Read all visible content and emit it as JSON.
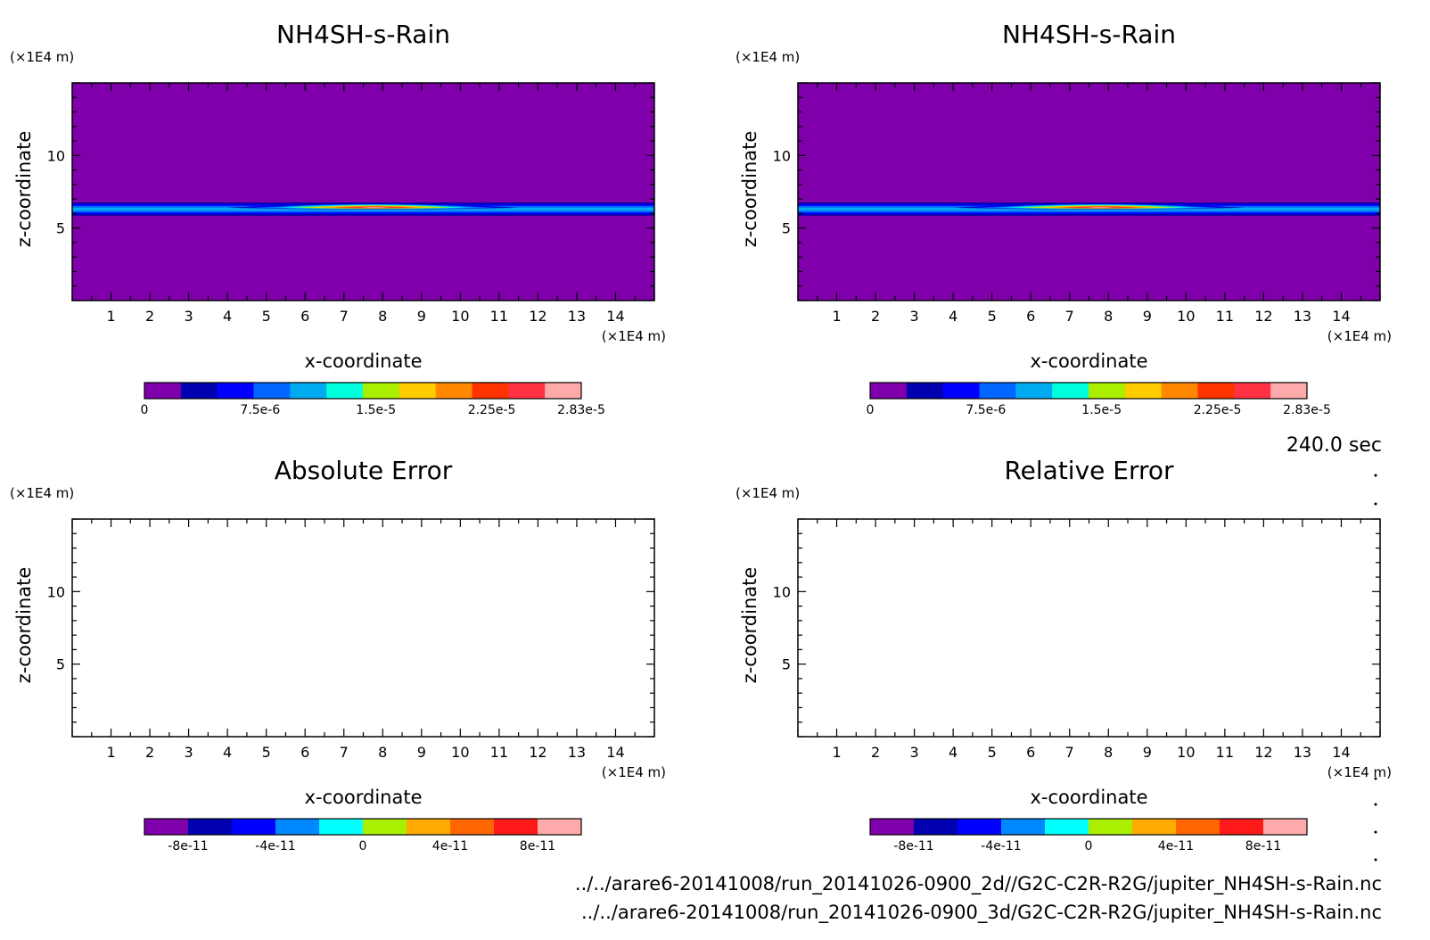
{
  "time_label": "240.0 sec",
  "file_paths": [
    "../../arare6-20141008/run_20141026-0900_2d//G2C-C2R-R2G/jupiter_NH4SH-s-Rain.nc",
    "../../arare6-20141008/run_20141026-0900_3d/G2C-C2R-R2G/jupiter_NH4SH-s-Rain.nc"
  ],
  "chart_data": [
    {
      "type": "heatmap",
      "title": "NH4SH-s-Rain",
      "xlabel": "x-coordinate",
      "ylabel": "z-coordinate",
      "x_unit": "(×1E4 m)",
      "y_unit": "(×1E4 m)",
      "xlim": [
        0,
        15
      ],
      "ylim": [
        0,
        15
      ],
      "x_ticks": [
        1,
        2,
        3,
        4,
        5,
        6,
        7,
        8,
        9,
        10,
        11,
        12,
        13,
        14
      ],
      "y_ticks": [
        5,
        10
      ],
      "background_value": 0,
      "features": [
        {
          "shape": "layer",
          "z_center": 6.3,
          "z_half_width": 0.45,
          "x_range": [
            0,
            15
          ],
          "peak": 1e-05
        },
        {
          "shape": "bump",
          "x_range": [
            4,
            11.5
          ],
          "x_peak": 7.8,
          "z_center": 6.4,
          "z_half_width": 0.3,
          "peak": 2.83e-05
        }
      ],
      "colorbar": {
        "min": 0,
        "max": 2.83e-05,
        "tick_labels": [
          "0",
          "7.5e-6",
          "1.5e-5",
          "2.25e-5",
          "2.83e-5"
        ],
        "tick_values": [
          0,
          7.5e-06,
          1.5e-05,
          2.25e-05,
          2.83e-05
        ],
        "colors": [
          "#7f00aa",
          "#0000b0",
          "#0000ff",
          "#0066ff",
          "#00aaee",
          "#00ffdd",
          "#aaee00",
          "#ffcc00",
          "#ff8800",
          "#ff3300",
          "#ff3344",
          "#ffaaaa"
        ]
      }
    },
    {
      "type": "heatmap",
      "title": "NH4SH-s-Rain",
      "xlabel": "x-coordinate",
      "ylabel": "z-coordinate",
      "x_unit": "(×1E4 m)",
      "y_unit": "(×1E4 m)",
      "xlim": [
        0,
        15
      ],
      "ylim": [
        0,
        15
      ],
      "x_ticks": [
        1,
        2,
        3,
        4,
        5,
        6,
        7,
        8,
        9,
        10,
        11,
        12,
        13,
        14
      ],
      "y_ticks": [
        5,
        10
      ],
      "background_value": 0,
      "features": [
        {
          "shape": "layer",
          "z_center": 6.3,
          "z_half_width": 0.45,
          "x_range": [
            0,
            15
          ],
          "peak": 1e-05
        },
        {
          "shape": "bump",
          "x_range": [
            4,
            11.5
          ],
          "x_peak": 7.8,
          "z_center": 6.4,
          "z_half_width": 0.3,
          "peak": 2.83e-05
        }
      ],
      "colorbar": {
        "min": 0,
        "max": 2.83e-05,
        "tick_labels": [
          "0",
          "7.5e-6",
          "1.5e-5",
          "2.25e-5",
          "2.83e-5"
        ],
        "tick_values": [
          0,
          7.5e-06,
          1.5e-05,
          2.25e-05,
          2.83e-05
        ],
        "colors": [
          "#7f00aa",
          "#0000b0",
          "#0000ff",
          "#0066ff",
          "#00aaee",
          "#00ffdd",
          "#aaee00",
          "#ffcc00",
          "#ff8800",
          "#ff3300",
          "#ff3344",
          "#ffaaaa"
        ]
      }
    },
    {
      "type": "heatmap",
      "title": "Absolute Error",
      "xlabel": "x-coordinate",
      "ylabel": "z-coordinate",
      "x_unit": "(×1E4 m)",
      "y_unit": "(×1E4 m)",
      "xlim": [
        0,
        15
      ],
      "ylim": [
        0,
        15
      ],
      "x_ticks": [
        1,
        2,
        3,
        4,
        5,
        6,
        7,
        8,
        9,
        10,
        11,
        12,
        13,
        14
      ],
      "y_ticks": [
        5,
        10
      ],
      "background_value": null,
      "features": [],
      "colorbar": {
        "min": -1e-10,
        "max": 1e-10,
        "tick_labels": [
          "-8e-11",
          "-4e-11",
          "0",
          "4e-11",
          "8e-11"
        ],
        "tick_values": [
          -8e-11,
          -4e-11,
          0,
          4e-11,
          8e-11
        ],
        "colors": [
          "#7f00aa",
          "#0000b0",
          "#0000ff",
          "#0088ff",
          "#00ffff",
          "#aaee00",
          "#ffaa00",
          "#ff6600",
          "#ff1a1a",
          "#ffaaaa"
        ]
      }
    },
    {
      "type": "heatmap",
      "title": "Relative Error",
      "xlabel": "x-coordinate",
      "ylabel": "z-coordinate",
      "x_unit": "(×1E4 m)",
      "y_unit": "(×1E4 m)",
      "xlim": [
        0,
        15
      ],
      "ylim": [
        0,
        15
      ],
      "x_ticks": [
        1,
        2,
        3,
        4,
        5,
        6,
        7,
        8,
        9,
        10,
        11,
        12,
        13,
        14
      ],
      "y_ticks": [
        5,
        10
      ],
      "background_value": null,
      "features": [],
      "colorbar": {
        "min": -1e-10,
        "max": 1e-10,
        "tick_labels": [
          "-8e-11",
          "-4e-11",
          "0",
          "4e-11",
          "8e-11"
        ],
        "tick_values": [
          -8e-11,
          -4e-11,
          0,
          4e-11,
          8e-11
        ],
        "colors": [
          "#7f00aa",
          "#0000b0",
          "#0000ff",
          "#0088ff",
          "#00ffff",
          "#aaee00",
          "#ffaa00",
          "#ff6600",
          "#ff1a1a",
          "#ffaaaa"
        ]
      }
    }
  ]
}
